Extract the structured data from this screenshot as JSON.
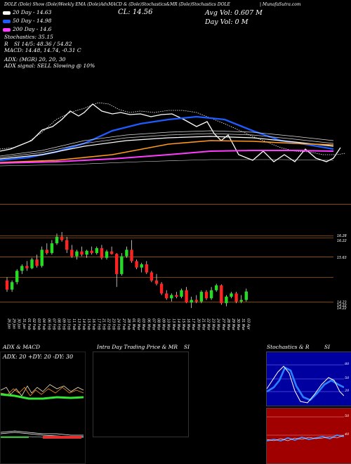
{
  "header": {
    "line": "DOLE (Dole) Show (Dole)Weekly EMA (Dole)AdxMACD & (Dole)Stochastics&MR (Dole)Stochastics DOLE",
    "close_label": "CL: 14.56",
    "avg_vol": "Avg Vol: 0.607 M",
    "day_vol": "Day Vol: 0   M",
    "source": "| MunafaSutra.com"
  },
  "legend": {
    "ma20": "20  Day - 14.63",
    "ma50": "50  Day - 14.98",
    "ma200": "200  Day - 14.6",
    "stoch": "Stochastics: 35.15",
    "si": "SI  14/5: 48.36 / 54.82",
    "r_label": "R",
    "macd": "MACD: 14.48, 14.74, -0.31 C",
    "adx": "ADX:                         (MGR) 20, 20, 30",
    "adx_signal": "ADX  signal: SELL Slowing @ 10%",
    "ma20_color": "#ffffff",
    "ma50_color": "#1f5cff",
    "ma200_color": "#ff3cff"
  },
  "price_axis": {
    "labels": [
      "16.28",
      "16.22",
      "15.63",
      "14.23",
      "14.22",
      "14.22"
    ]
  },
  "date_labels": [
    "26 Jan",
    "29 Jan",
    "30 Jan",
    "31 Jan",
    "01 Feb",
    "02 Feb",
    "03 Feb",
    "04 Feb",
    "06 Feb",
    "07 Feb",
    "08 Feb",
    "09 Feb",
    "10 Feb",
    "11 Feb",
    "13 Feb",
    "14 Feb",
    "15 Feb",
    "16 Feb",
    "17 Feb",
    "21 Feb",
    "22 Feb",
    "23 Feb",
    "24 Feb",
    "27 Feb",
    "28 Feb",
    "01 Mar",
    "02 Mar",
    "03 Mar",
    "06 Mar",
    "07 Mar",
    "08 Mar",
    "09 Mar",
    "10 Mar",
    "13 Mar",
    "14 Mar",
    "15 Mar",
    "16 Mar",
    "17 Mar",
    "20 Mar",
    "21 Mar",
    "22 Mar",
    "23 Mar",
    "24 Mar",
    "27 Mar",
    "28 Mar",
    "29 Mar",
    "30 Mar",
    "31 Mar",
    "03 Apr"
  ],
  "panels": {
    "adx_title": "ADX  & MACD",
    "adx_values": "ADX: 20  +DY: 20  -DY: 30",
    "intra_title": "Intra  Day Trading Price  & MR",
    "intra_si": "SI",
    "stoch_title": "Stochastics & R",
    "stoch_si": "SI",
    "stoch_ticks": [
      "80",
      "50",
      "20"
    ],
    "rsi_ticks": [
      "50",
      "40"
    ]
  },
  "chart_data": {
    "type": "candlestick",
    "candles": [
      {
        "o": 14.9,
        "h": 15.0,
        "l": 14.55,
        "c": 14.62
      },
      {
        "o": 14.62,
        "h": 14.9,
        "l": 14.55,
        "c": 14.85
      },
      {
        "o": 14.85,
        "h": 15.25,
        "l": 14.78,
        "c": 15.2
      },
      {
        "o": 15.2,
        "h": 15.4,
        "l": 15.1,
        "c": 15.35
      },
      {
        "o": 15.35,
        "h": 15.5,
        "l": 15.2,
        "c": 15.28
      },
      {
        "o": 15.28,
        "h": 15.6,
        "l": 15.25,
        "c": 15.55
      },
      {
        "o": 15.55,
        "h": 15.7,
        "l": 15.3,
        "c": 15.35
      },
      {
        "o": 15.35,
        "h": 15.95,
        "l": 15.3,
        "c": 15.85
      },
      {
        "o": 15.85,
        "h": 16.05,
        "l": 15.7,
        "c": 15.75
      },
      {
        "o": 15.75,
        "h": 16.15,
        "l": 15.7,
        "c": 16.05
      },
      {
        "o": 16.05,
        "h": 16.35,
        "l": 16.0,
        "c": 16.25
      },
      {
        "o": 16.25,
        "h": 16.4,
        "l": 16.1,
        "c": 16.15
      },
      {
        "o": 16.15,
        "h": 16.25,
        "l": 15.75,
        "c": 15.85
      },
      {
        "o": 15.85,
        "h": 16.0,
        "l": 15.6,
        "c": 15.65
      },
      {
        "o": 15.65,
        "h": 15.85,
        "l": 15.55,
        "c": 15.8
      },
      {
        "o": 15.8,
        "h": 15.95,
        "l": 15.65,
        "c": 15.7
      },
      {
        "o": 15.7,
        "h": 15.85,
        "l": 15.6,
        "c": 15.82
      },
      {
        "o": 15.82,
        "h": 15.95,
        "l": 15.7,
        "c": 15.75
      },
      {
        "o": 15.75,
        "h": 15.95,
        "l": 15.7,
        "c": 15.9
      },
      {
        "o": 15.9,
        "h": 16.0,
        "l": 15.55,
        "c": 15.6
      },
      {
        "o": 15.6,
        "h": 15.85,
        "l": 15.55,
        "c": 15.8
      },
      {
        "o": 15.8,
        "h": 15.95,
        "l": 15.7,
        "c": 15.72
      },
      {
        "o": 15.72,
        "h": 15.75,
        "l": 14.7,
        "c": 15.1
      },
      {
        "o": 15.1,
        "h": 15.75,
        "l": 15.05,
        "c": 15.65
      },
      {
        "o": 15.65,
        "h": 15.95,
        "l": 15.6,
        "c": 15.85
      },
      {
        "o": 15.85,
        "h": 16.15,
        "l": 15.45,
        "c": 15.5
      },
      {
        "o": 15.5,
        "h": 15.55,
        "l": 15.25,
        "c": 15.3
      },
      {
        "o": 15.3,
        "h": 15.45,
        "l": 15.15,
        "c": 15.4
      },
      {
        "o": 15.4,
        "h": 15.5,
        "l": 15.1,
        "c": 15.15
      },
      {
        "o": 15.15,
        "h": 15.2,
        "l": 14.85,
        "c": 14.9
      },
      {
        "o": 14.9,
        "h": 15.1,
        "l": 14.75,
        "c": 14.8
      },
      {
        "o": 14.8,
        "h": 14.85,
        "l": 14.45,
        "c": 14.5
      },
      {
        "o": 14.5,
        "h": 14.6,
        "l": 14.3,
        "c": 14.35
      },
      {
        "o": 14.35,
        "h": 14.5,
        "l": 14.25,
        "c": 14.45
      },
      {
        "o": 14.45,
        "h": 14.55,
        "l": 14.35,
        "c": 14.4
      },
      {
        "o": 14.4,
        "h": 14.65,
        "l": 14.35,
        "c": 14.6
      },
      {
        "o": 14.6,
        "h": 14.7,
        "l": 14.2,
        "c": 14.22
      },
      {
        "o": 14.22,
        "h": 14.4,
        "l": 14.05,
        "c": 14.3
      },
      {
        "o": 14.3,
        "h": 14.45,
        "l": 14.2,
        "c": 14.25
      },
      {
        "o": 14.25,
        "h": 14.6,
        "l": 14.2,
        "c": 14.55
      },
      {
        "o": 14.55,
        "h": 14.6,
        "l": 14.3,
        "c": 14.35
      },
      {
        "o": 14.35,
        "h": 14.7,
        "l": 14.3,
        "c": 14.6
      },
      {
        "o": 14.6,
        "h": 14.8,
        "l": 14.55,
        "c": 14.75
      },
      {
        "o": 14.75,
        "h": 14.78,
        "l": 14.15,
        "c": 14.2
      },
      {
        "o": 14.2,
        "h": 14.45,
        "l": 14.1,
        "c": 14.4
      },
      {
        "o": 14.4,
        "h": 14.55,
        "l": 14.35,
        "c": 14.5
      },
      {
        "o": 14.5,
        "h": 14.55,
        "l": 14.2,
        "c": 14.25
      },
      {
        "o": 14.25,
        "h": 14.45,
        "l": 14.2,
        "c": 14.3
      },
      {
        "o": 14.3,
        "h": 14.65,
        "l": 14.25,
        "c": 14.56
      }
    ],
    "ylim": [
      13.9,
      16.9
    ],
    "hlines": [
      16.28,
      16.22,
      15.63,
      15.0,
      14.23
    ]
  }
}
